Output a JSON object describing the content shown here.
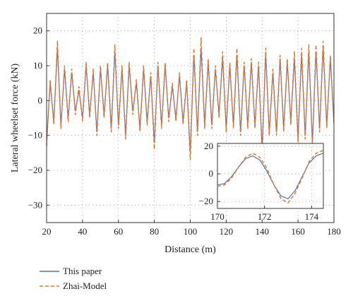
{
  "chart_data": [
    {
      "type": "line",
      "title": "",
      "xlabel": "Distance (m)",
      "ylabel": "Lateral wheelset force (kN)",
      "xlim": [
        20,
        180
      ],
      "ylim": [
        -35,
        25
      ],
      "xticks": [
        20,
        40,
        60,
        80,
        100,
        120,
        140,
        160,
        180
      ],
      "yticks": [
        20,
        10,
        0,
        -10,
        -20,
        -30
      ],
      "grid": true,
      "legend_placement": "bottom-left, below plot",
      "series": [
        {
          "name": "This paper",
          "color": "#4e6fc8",
          "style": "solid",
          "x": [
            20,
            22,
            24,
            26,
            28,
            30,
            32,
            34,
            36,
            38,
            40,
            42,
            44,
            46,
            48,
            50,
            52,
            54,
            56,
            58,
            60,
            62,
            64,
            66,
            68,
            70,
            72,
            74,
            76,
            78,
            80,
            82,
            84,
            86,
            88,
            90,
            92,
            94,
            96,
            98,
            100,
            102,
            104,
            106,
            108,
            110,
            112,
            114,
            116,
            118,
            120,
            122,
            124,
            126,
            128,
            130,
            132,
            134,
            136,
            138,
            140,
            142,
            144,
            146,
            148,
            150,
            152,
            154,
            156,
            158,
            160,
            162,
            164,
            166,
            168,
            170,
            172,
            174,
            176,
            178,
            180
          ],
          "y": [
            -12,
            5,
            -6,
            15,
            -7,
            9,
            -5,
            8,
            -3,
            3,
            -5,
            10,
            -4,
            8,
            -9,
            9,
            -4,
            10,
            -8,
            14,
            -7,
            9,
            -10,
            10,
            -3,
            5,
            -8,
            9,
            -6,
            7,
            -12,
            10,
            -7,
            10,
            -5,
            4,
            -5,
            7,
            -6,
            5,
            -15,
            13,
            -9,
            15,
            -7,
            11,
            -7,
            9,
            -4,
            12,
            -8,
            10,
            -7,
            13,
            -9,
            10,
            -7,
            11,
            -7,
            10,
            -14,
            13,
            -9,
            8,
            -9,
            12,
            -8,
            11,
            -6,
            12,
            -11,
            13,
            -10,
            14,
            -12,
            14,
            -8,
            15,
            -7,
            12,
            -6
          ]
        },
        {
          "name": "Zhai-Model",
          "color": "#e07a2e",
          "style": "dashed",
          "x": [
            20,
            22,
            24,
            26,
            28,
            30,
            32,
            34,
            36,
            38,
            40,
            42,
            44,
            46,
            48,
            50,
            52,
            54,
            56,
            58,
            60,
            62,
            64,
            66,
            68,
            70,
            72,
            74,
            76,
            78,
            80,
            82,
            84,
            86,
            88,
            90,
            92,
            94,
            96,
            98,
            100,
            102,
            104,
            106,
            108,
            110,
            112,
            114,
            116,
            118,
            120,
            122,
            124,
            126,
            128,
            130,
            132,
            134,
            136,
            138,
            140,
            142,
            144,
            146,
            148,
            150,
            152,
            154,
            156,
            158,
            160,
            162,
            164,
            166,
            168,
            170,
            172,
            174,
            176,
            178,
            180
          ],
          "y": [
            -13,
            6,
            -7,
            17,
            -8,
            10,
            -6,
            9,
            -4,
            4,
            -6,
            11,
            -5,
            9,
            -10,
            10,
            -5,
            11,
            -9,
            16,
            -8,
            10,
            -11,
            11,
            -4,
            6,
            -9,
            10,
            -7,
            8,
            -14,
            11,
            -8,
            11,
            -6,
            5,
            -6,
            8,
            -7,
            6,
            -17,
            15,
            -10,
            18,
            -8,
            12,
            -8,
            10,
            -5,
            14,
            -9,
            11,
            -8,
            15,
            -10,
            11,
            -8,
            12,
            -8,
            11,
            -16,
            15,
            -10,
            9,
            -10,
            13,
            -9,
            12,
            -7,
            14,
            -12,
            15,
            -11,
            16,
            -13,
            16,
            -9,
            17,
            -8,
            13,
            -7
          ]
        }
      ]
    },
    {
      "type": "line",
      "title": "",
      "xlabel": "",
      "ylabel": "",
      "xlim": [
        170,
        174.5
      ],
      "ylim": [
        -25,
        22
      ],
      "xticks": [
        170,
        172,
        174
      ],
      "yticks": [
        20,
        0,
        -20
      ],
      "grid": true,
      "inset": true,
      "series": [
        {
          "name": "This paper",
          "color": "#4e6fc8",
          "style": "solid",
          "x": [
            170,
            170.3,
            170.6,
            170.9,
            171.2,
            171.5,
            171.8,
            172.1,
            172.4,
            172.7,
            173.0,
            173.3,
            173.6,
            173.9,
            174.2,
            174.5
          ],
          "y": [
            -8,
            -7,
            -2,
            5,
            11,
            13,
            10,
            2,
            -8,
            -16,
            -18,
            -12,
            -2,
            8,
            13,
            15
          ]
        },
        {
          "name": "Zhai-Model",
          "color": "#e07a2e",
          "style": "dashed",
          "x": [
            170,
            170.3,
            170.6,
            170.9,
            171.2,
            171.5,
            171.8,
            172.1,
            172.4,
            172.7,
            173.0,
            173.3,
            173.6,
            173.9,
            174.2,
            174.5
          ],
          "y": [
            -9,
            -8,
            -3,
            5,
            12,
            15,
            12,
            4,
            -8,
            -18,
            -21,
            -14,
            -3,
            9,
            15,
            17
          ]
        }
      ]
    }
  ]
}
